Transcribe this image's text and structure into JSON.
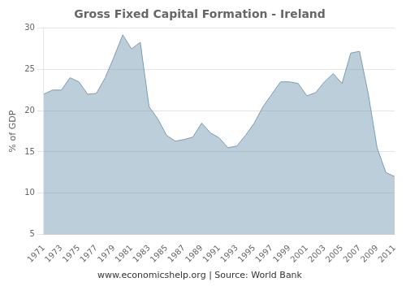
{
  "chart_data": {
    "type": "area",
    "title": "Gross Fixed Capital Formation - Ireland",
    "y_label": "% of GDP",
    "annotations": [
      "www.economicshelp.org | Source: World Bank"
    ],
    "x": [
      1971,
      1972,
      1973,
      1974,
      1975,
      1976,
      1977,
      1978,
      1979,
      1980,
      1981,
      1982,
      1983,
      1984,
      1985,
      1986,
      1987,
      1988,
      1989,
      1990,
      1991,
      1992,
      1993,
      1994,
      1995,
      1996,
      1997,
      1998,
      1999,
      2000,
      2001,
      2002,
      2003,
      2004,
      2005,
      2006,
      2007,
      2008,
      2009,
      2010,
      2011
    ],
    "values": [
      22.0,
      22.5,
      22.5,
      24.0,
      23.5,
      22.0,
      22.1,
      24.0,
      26.5,
      29.2,
      27.5,
      28.3,
      20.5,
      19.0,
      17.0,
      16.3,
      16.5,
      16.8,
      18.5,
      17.3,
      16.7,
      15.5,
      15.7,
      17.0,
      18.5,
      20.5,
      22.0,
      23.5,
      23.5,
      23.3,
      21.8,
      22.2,
      23.5,
      24.5,
      23.3,
      27.0,
      27.2,
      22.0,
      15.5,
      12.5,
      12.0
    ],
    "color": "#7a9db5",
    "xlim": [
      1971,
      2011
    ],
    "xticks": [
      1971,
      1973,
      1975,
      1977,
      1979,
      1981,
      1983,
      1985,
      1987,
      1989,
      1991,
      1993,
      1995,
      1997,
      1999,
      2001,
      2003,
      2005,
      2007,
      2009,
      2011
    ],
    "ylim": [
      5,
      30
    ],
    "yticks": [
      5,
      10,
      15,
      20,
      25,
      30
    ],
    "grid": true
  }
}
